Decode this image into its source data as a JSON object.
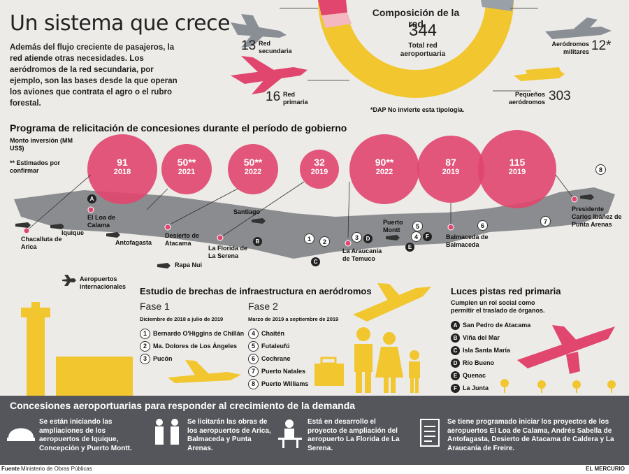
{
  "title": "Un sistema que crece",
  "intro": "Además del flujo creciente de pasajeros, la red atiende otras necesidades. Los aeródromos de la red secundaria, por ejemplo, son las bases desde la que operan los aviones que contrata el agro o el rubro forestal.",
  "composition": {
    "title": "Composición de la red",
    "total": "344",
    "total_label": "Total red aeroportuaria",
    "segments": [
      {
        "label": "Red secundaria",
        "value": "13",
        "color": "#f4b8c2"
      },
      {
        "label": "Red primaria",
        "value": "16",
        "color": "#e0466e"
      },
      {
        "label": "Aeródromos militares",
        "value": "12*",
        "color": "#9aa0a8"
      },
      {
        "label": "Pequeños aeródromos",
        "value": "303",
        "color": "#f2c62f"
      }
    ],
    "note": "*DAP No invierte esta tipología."
  },
  "concessions": {
    "title": "Programa de relicitación de concesiones durante el período de gobierno",
    "investment_label": "Monto inversión (MM US$)",
    "estimate_note": "** Estimados por confirmar",
    "bubbles": [
      {
        "value": "91",
        "year": "2018"
      },
      {
        "value": "50**",
        "year": "2021"
      },
      {
        "value": "50**",
        "year": "2022"
      },
      {
        "value": "32",
        "year": "2019"
      },
      {
        "value": "90**",
        "year": "2022"
      },
      {
        "value": "87",
        "year": "2019"
      },
      {
        "value": "115",
        "year": "2019"
      }
    ],
    "airports": [
      "Chacalluta de Arica",
      "Iquique",
      "Antofagasta",
      "El Loa de Calama",
      "Desierto de Atacama",
      "Santiago",
      "La Florida de La Serena",
      "Rapa Nui",
      "La Araucanía de Temuco",
      "Puerto Montt",
      "Balmaceda de Balmaceda",
      "Presidente Carlos Ibáñez de Punta Arenas"
    ],
    "legend": "Aeropuertos internacionales"
  },
  "study": {
    "title": "Estudio de brechas de infraestructura en aeródromos",
    "phase1": {
      "title": "Fase 1",
      "period": "Diciembre de 2018 a julio de 2019",
      "items": [
        {
          "n": "1",
          "name": "Bernardo O'Higgins de Chillán"
        },
        {
          "n": "2",
          "name": "Ma. Dolores de Los Ángeles"
        },
        {
          "n": "3",
          "name": "Pucón"
        }
      ]
    },
    "phase2": {
      "title": "Fase 2",
      "period": "Marzo de 2019 a septiembre de 2019",
      "items": [
        {
          "n": "4",
          "name": "Chaitén"
        },
        {
          "n": "5",
          "name": "Futaleufú"
        },
        {
          "n": "6",
          "name": "Cochrane"
        },
        {
          "n": "7",
          "name": "Puerto Natales"
        },
        {
          "n": "8",
          "name": "Puerto Williams"
        }
      ]
    }
  },
  "lights": {
    "title": "Luces pistas red primaria",
    "subtitle": "Cumplen un rol social como permitir el traslado de órganos.",
    "items": [
      {
        "k": "A",
        "name": "San Pedro de Atacama"
      },
      {
        "k": "B",
        "name": "Viña del Mar"
      },
      {
        "k": "C",
        "name": "Isla Santa María"
      },
      {
        "k": "D",
        "name": "Río Bueno"
      },
      {
        "k": "E",
        "name": "Quenac"
      },
      {
        "k": "F",
        "name": "La Junta"
      }
    ]
  },
  "bottom": {
    "title": "Concesiones aeroportuarias para responder al crecimiento de la demanda",
    "cols": [
      "Se están iniciando las ampliaciones de los aeropuertos de Iquique, Concepción y Puerto Montt.",
      "Se licitarán las obras de los aeropuertos de Arica, Balmaceda y Punta Arenas.",
      "Está en desarrollo el proyecto de ampliación del aeropuerto La Florida de La Serena.",
      "Se tiene programado iniciar los proyectos de los aeropuertos El Loa de Calama, Andrés Sabella de Antofagasta, Desierto de Atacama de Caldera y La Araucanía de Freire."
    ]
  },
  "footer": {
    "source_label": "Fuente",
    "source": "Ministerio de Obras Públicas",
    "brand": "EL MERCURIO"
  }
}
